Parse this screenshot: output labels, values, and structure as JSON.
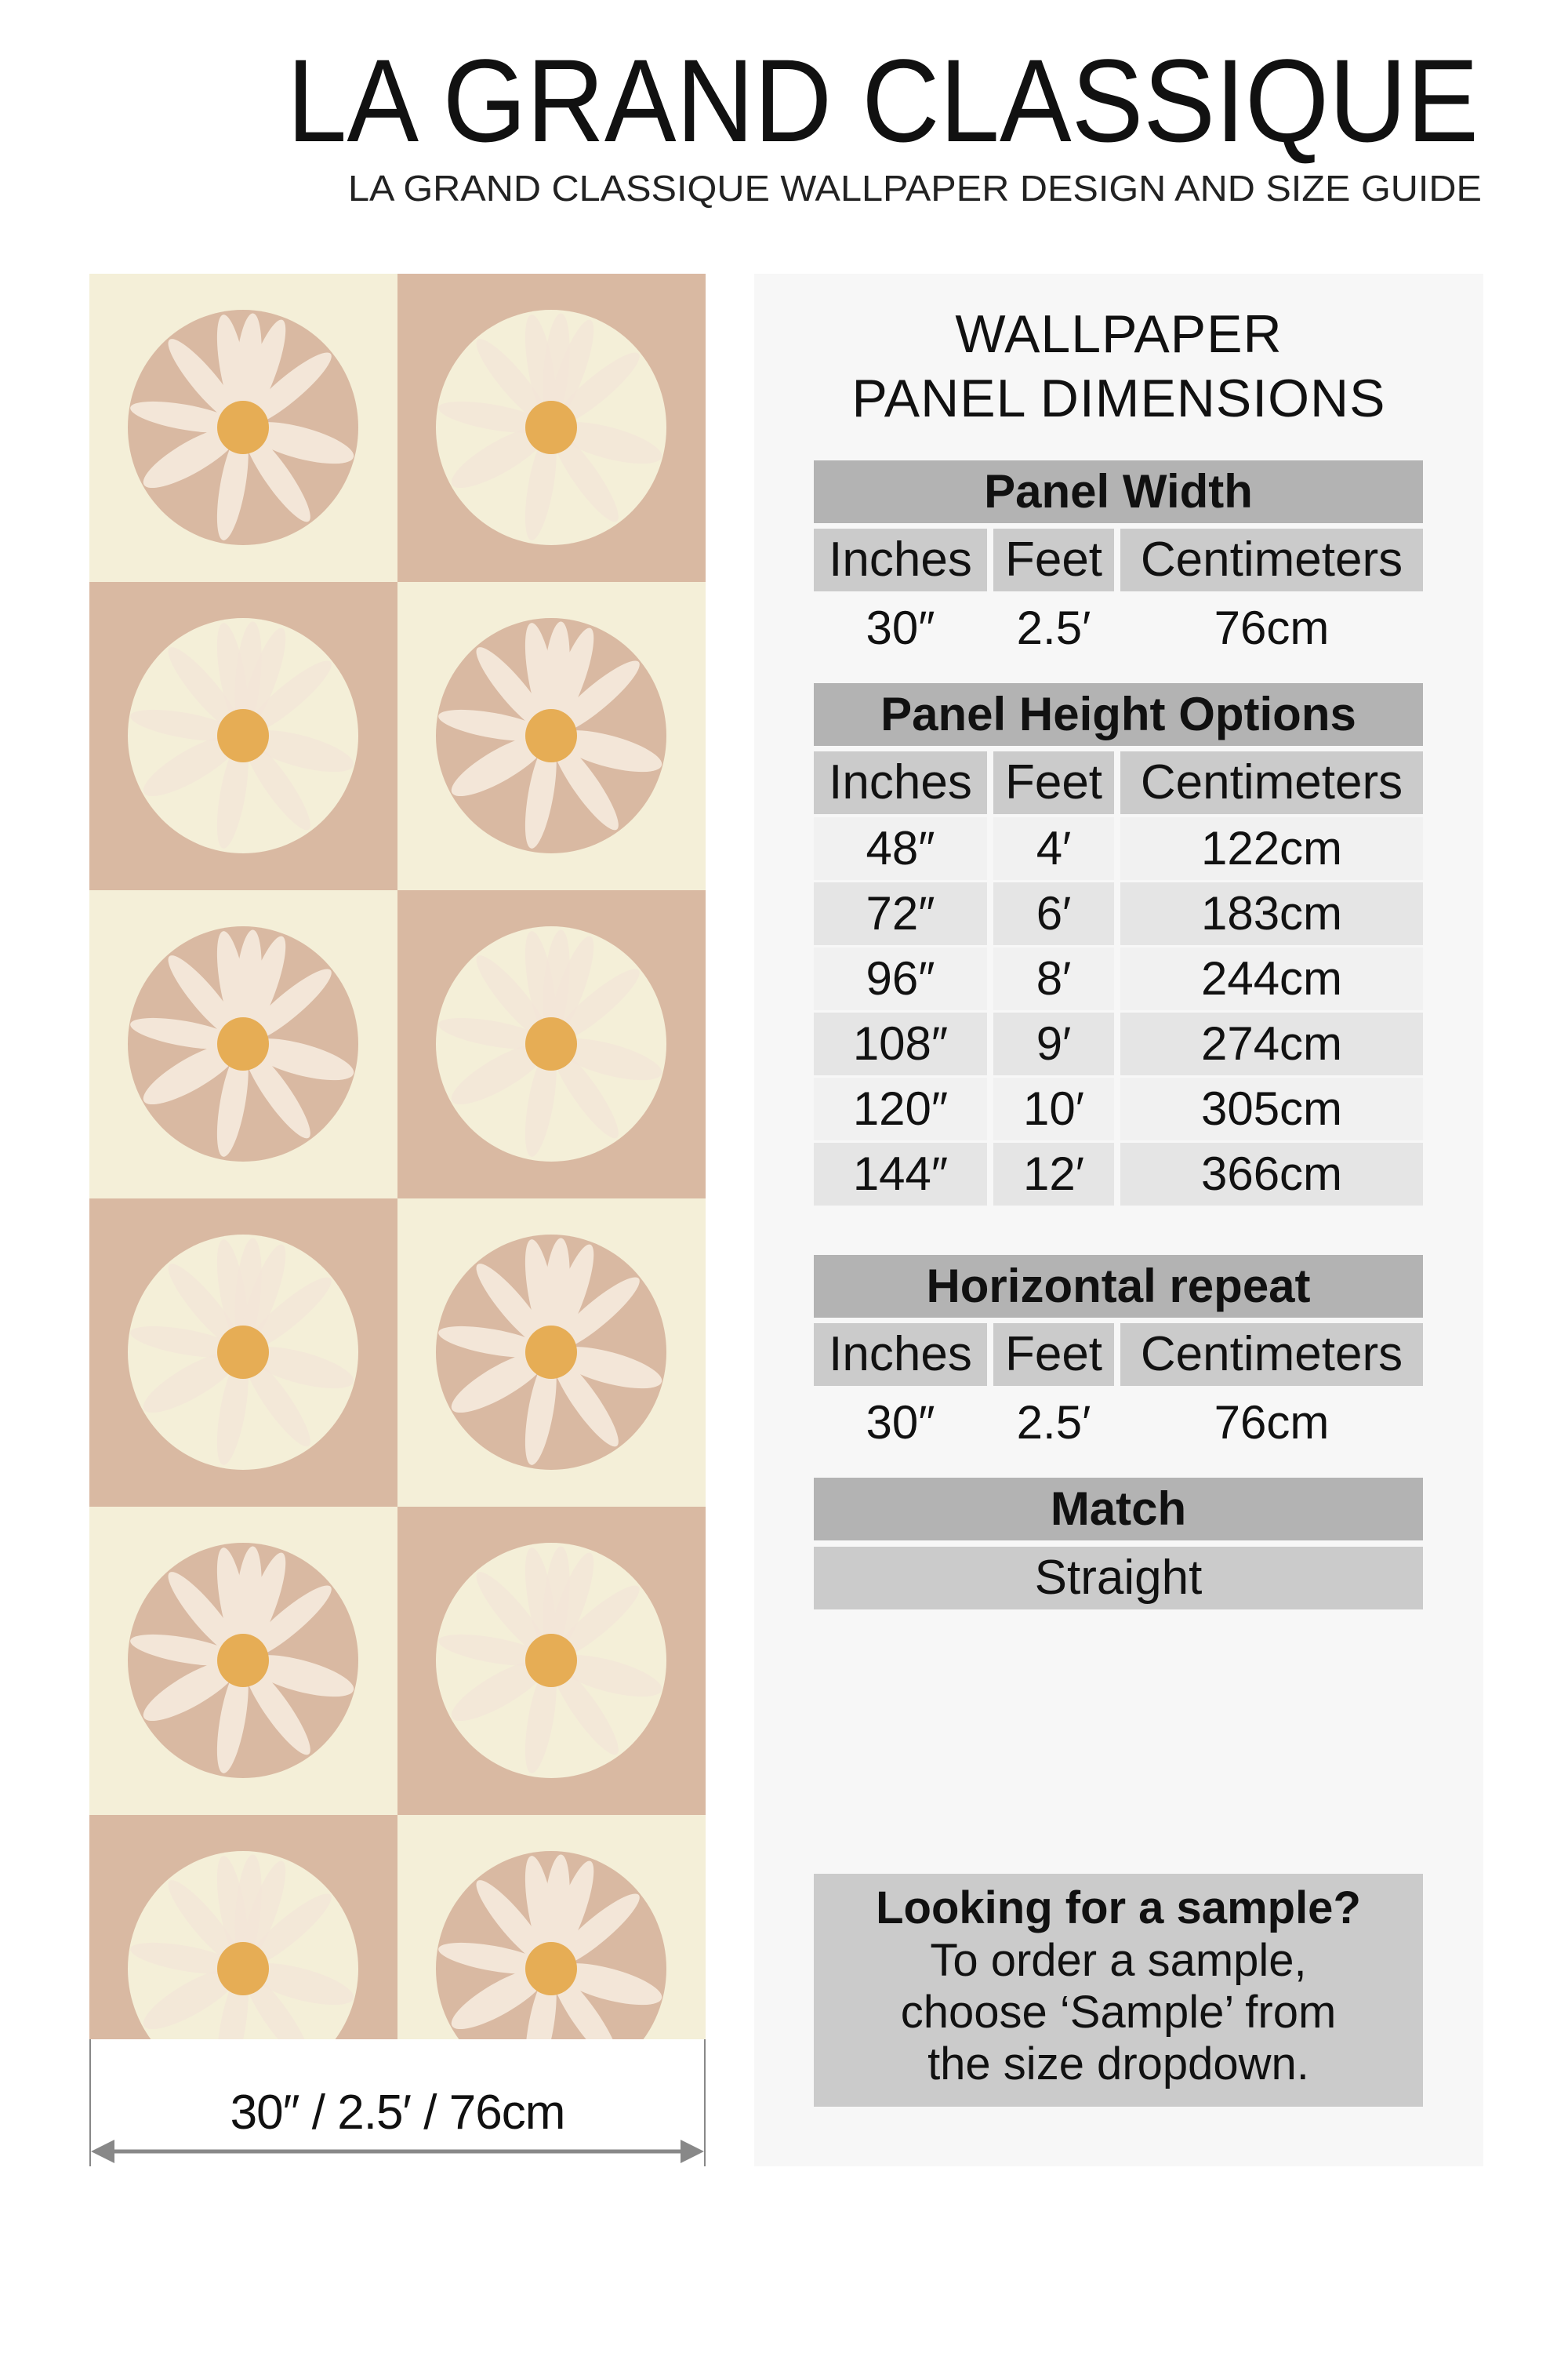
{
  "header": {
    "title": "LA GRAND CLASSIQUE",
    "subtitle": "LA GRAND CLASSIQUE WALLPAPER DESIGN AND SIZE GUIDE"
  },
  "pattern": {
    "colors": {
      "cream": "#f4efd8",
      "tan": "#d9b9a2",
      "petal": "#f3e6d8",
      "center": "#e6ad55"
    },
    "motif": "daisy-in-circle checkerboard"
  },
  "dimension_label": "30″ / 2.5′ / 76cm",
  "panel": {
    "title_line1": "WALLPAPER",
    "title_line2": "PANEL DIMENSIONS",
    "columns": [
      "Inches",
      "Feet",
      "Centimeters"
    ],
    "width": {
      "header": "Panel Width",
      "values": [
        "30″",
        "2.5′",
        "76cm"
      ]
    },
    "height": {
      "header": "Panel Height Options",
      "rows": [
        [
          "48″",
          "4′",
          "122cm"
        ],
        [
          "72″",
          "6′",
          "183cm"
        ],
        [
          "96″",
          "8′",
          "244cm"
        ],
        [
          "108″",
          "9′",
          "274cm"
        ],
        [
          "120″",
          "10′",
          "305cm"
        ],
        [
          "144″",
          "12′",
          "366cm"
        ]
      ]
    },
    "repeat": {
      "header": "Horizontal repeat",
      "values": [
        "30″",
        "2.5′",
        "76cm"
      ]
    },
    "match": {
      "header": "Match",
      "value": "Straight"
    },
    "sample": {
      "title": "Looking for a sample?",
      "line1": "To order a sample,",
      "line2": "choose ‘Sample’ from",
      "line3": "the size dropdown."
    }
  }
}
